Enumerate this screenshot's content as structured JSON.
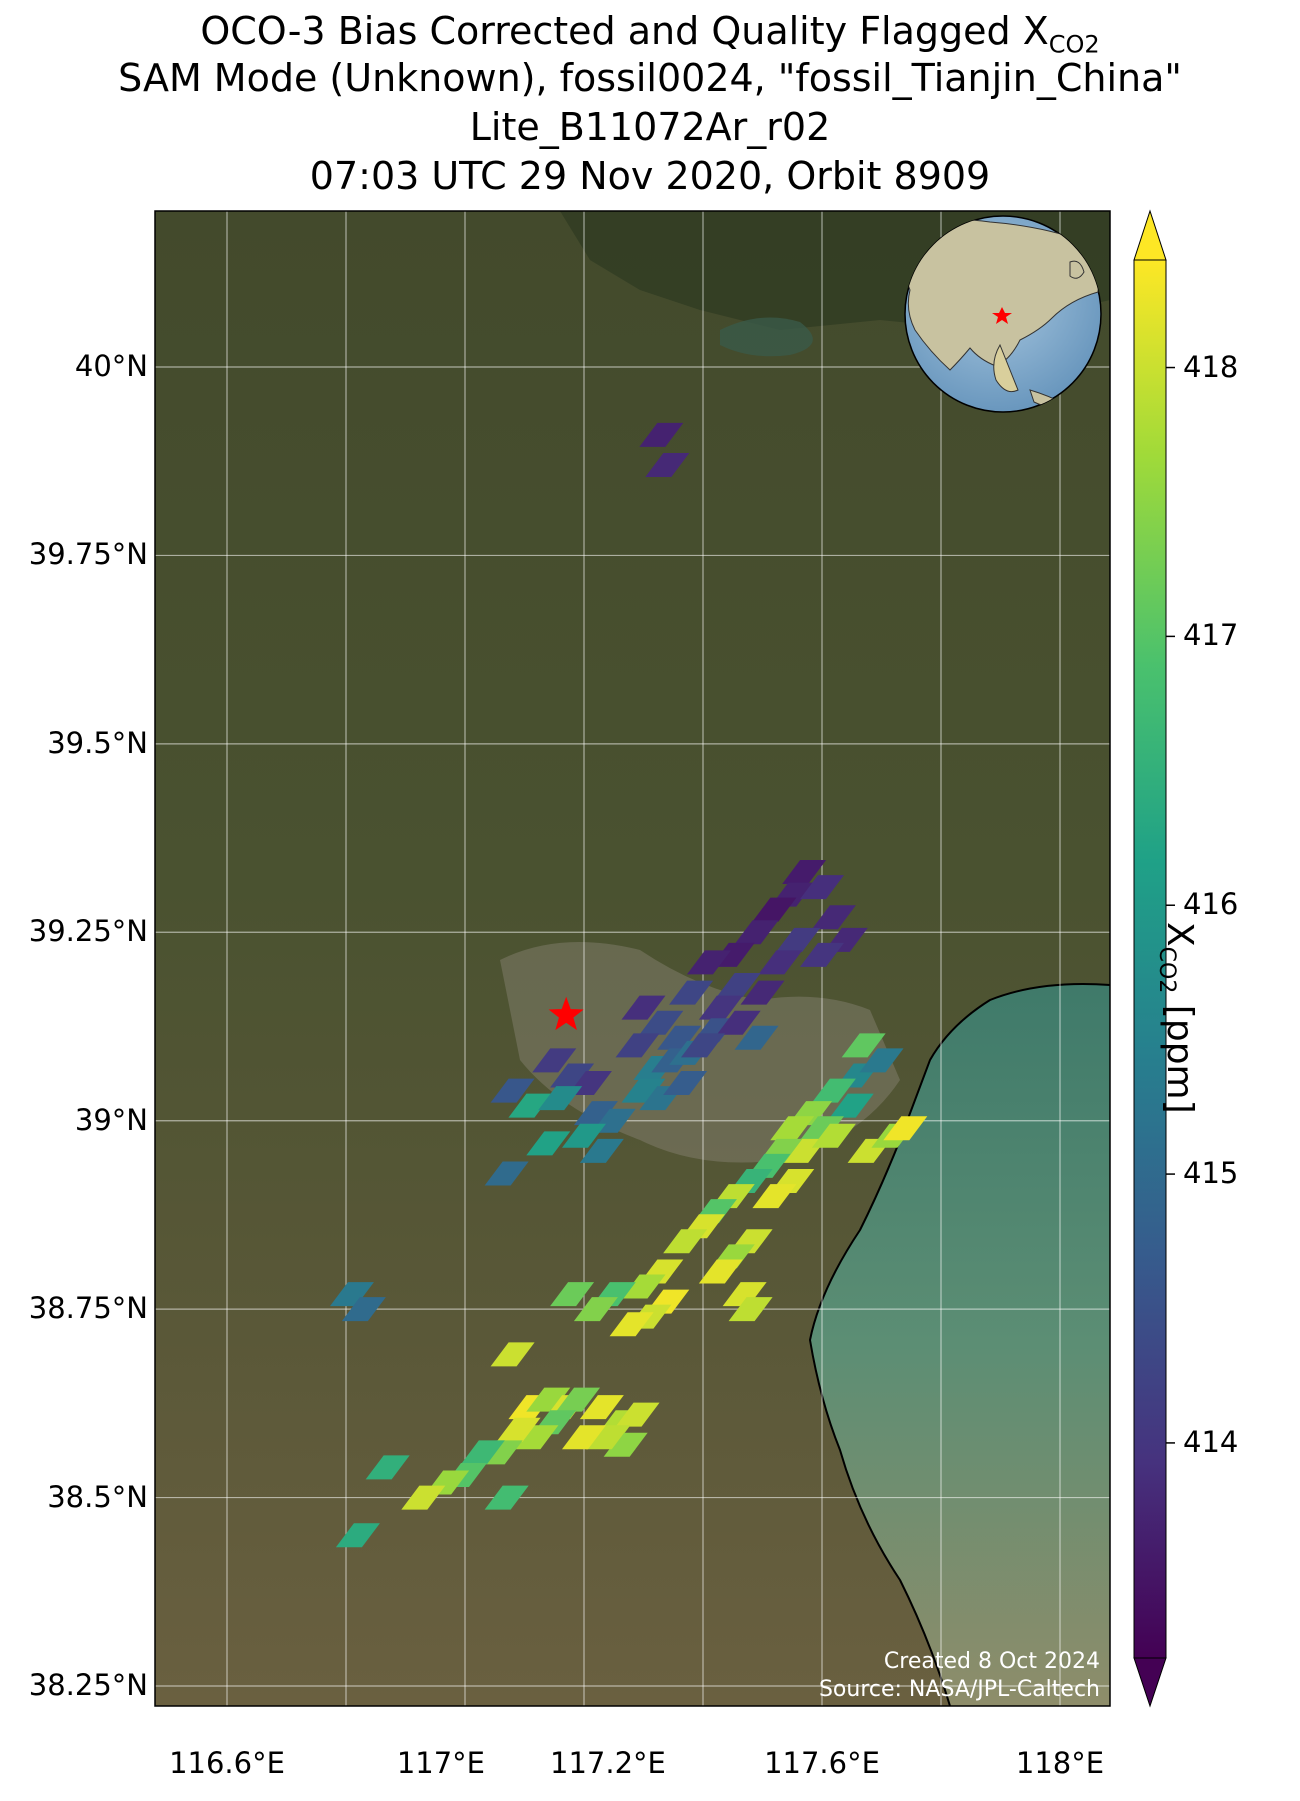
{
  "title": {
    "line1_prefix": "OCO-3 Bias Corrected and Quality Flagged X",
    "line1_sub": "CO2",
    "line2": "SAM Mode (Unknown), fossil0024, \"fossil_Tianjin_China\"",
    "line3": "Lite_B11072Ar_r02",
    "line4": "07:03 UTC 29 Nov 2020, Orbit 8909"
  },
  "map": {
    "lon_range": [
      116.5,
      118.1
    ],
    "lat_range": [
      38.2,
      40.2
    ],
    "lon_ticks": [
      {
        "value": 116.6,
        "label": "116.6°E"
      },
      {
        "value": 117.0,
        "label": "117°E"
      },
      {
        "value": 117.2,
        "label": "117.2°E"
      },
      {
        "value": 117.6,
        "label": "117.6°E"
      },
      {
        "value": 118.0,
        "label": "118°E"
      }
    ],
    "lat_ticks": [
      {
        "value": 40.0,
        "label": "40°N"
      },
      {
        "value": 39.75,
        "label": "39.75°N"
      },
      {
        "value": 39.5,
        "label": "39.5°N"
      },
      {
        "value": 39.25,
        "label": "39.25°N"
      },
      {
        "value": 39.0,
        "label": "39°N"
      },
      {
        "value": 38.75,
        "label": "38.75°N"
      },
      {
        "value": 38.5,
        "label": "38.5°N"
      },
      {
        "value": 38.25,
        "label": "38.25°N"
      }
    ],
    "gridlines_lon": [
      116.6,
      116.8,
      117.0,
      117.2,
      117.4,
      117.6,
      117.8,
      118.0
    ],
    "gridlines_lat": [
      40.0,
      39.75,
      39.5,
      39.25,
      39.0,
      38.75,
      38.5,
      38.25
    ],
    "target": {
      "lon": 117.17,
      "lat": 39.14
    },
    "colors": {
      "land": "#4a5230",
      "sea": "#5a8a72",
      "target": "#ff0000"
    }
  },
  "chart_data": {
    "type": "scatter",
    "variable": "XCO2",
    "units": "ppm",
    "colorbar": {
      "ticks": [
        414,
        415,
        416,
        417,
        418
      ],
      "range": [
        413.2,
        418.4
      ],
      "extend": "both",
      "label_prefix": "X",
      "label_sub": "CO2",
      "label_suffix": " [ppm]",
      "colormap": "viridis"
    },
    "soundings": [
      {
        "lon": 117.33,
        "lat": 39.91,
        "xco2": 413.7
      },
      {
        "lon": 117.34,
        "lat": 39.87,
        "xco2": 413.8
      },
      {
        "lon": 117.57,
        "lat": 39.33,
        "xco2": 413.6
      },
      {
        "lon": 117.55,
        "lat": 39.3,
        "xco2": 413.7
      },
      {
        "lon": 117.6,
        "lat": 39.31,
        "xco2": 413.9
      },
      {
        "lon": 117.52,
        "lat": 39.28,
        "xco2": 413.5
      },
      {
        "lon": 117.62,
        "lat": 39.27,
        "xco2": 413.8
      },
      {
        "lon": 117.49,
        "lat": 39.25,
        "xco2": 413.7
      },
      {
        "lon": 117.56,
        "lat": 39.24,
        "xco2": 414.1
      },
      {
        "lon": 117.64,
        "lat": 39.24,
        "xco2": 413.8
      },
      {
        "lon": 117.45,
        "lat": 39.22,
        "xco2": 413.6
      },
      {
        "lon": 117.53,
        "lat": 39.21,
        "xco2": 413.9
      },
      {
        "lon": 117.6,
        "lat": 39.22,
        "xco2": 414.0
      },
      {
        "lon": 117.41,
        "lat": 39.21,
        "xco2": 413.7
      },
      {
        "lon": 117.46,
        "lat": 39.18,
        "xco2": 414.2
      },
      {
        "lon": 117.5,
        "lat": 39.17,
        "xco2": 413.8
      },
      {
        "lon": 117.43,
        "lat": 39.15,
        "xco2": 414.0
      },
      {
        "lon": 117.38,
        "lat": 39.17,
        "xco2": 414.3
      },
      {
        "lon": 117.42,
        "lat": 39.12,
        "xco2": 414.5
      },
      {
        "lon": 117.46,
        "lat": 39.13,
        "xco2": 413.9
      },
      {
        "lon": 117.3,
        "lat": 39.15,
        "xco2": 413.9
      },
      {
        "lon": 117.33,
        "lat": 39.13,
        "xco2": 414.4
      },
      {
        "lon": 117.36,
        "lat": 39.11,
        "xco2": 414.6
      },
      {
        "lon": 117.29,
        "lat": 39.1,
        "xco2": 414.2
      },
      {
        "lon": 117.32,
        "lat": 39.07,
        "xco2": 415.4
      },
      {
        "lon": 117.35,
        "lat": 39.08,
        "xco2": 414.8
      },
      {
        "lon": 117.38,
        "lat": 39.09,
        "xco2": 415.1
      },
      {
        "lon": 117.3,
        "lat": 39.04,
        "xco2": 415.5
      },
      {
        "lon": 117.33,
        "lat": 39.03,
        "xco2": 415.2
      },
      {
        "lon": 117.37,
        "lat": 39.05,
        "xco2": 414.7
      },
      {
        "lon": 117.4,
        "lat": 39.1,
        "xco2": 414.3
      },
      {
        "lon": 117.49,
        "lat": 39.11,
        "xco2": 414.9
      },
      {
        "lon": 117.15,
        "lat": 39.08,
        "xco2": 414.1
      },
      {
        "lon": 117.18,
        "lat": 39.06,
        "xco2": 414.3
      },
      {
        "lon": 117.21,
        "lat": 39.05,
        "xco2": 414.0
      },
      {
        "lon": 117.08,
        "lat": 39.04,
        "xco2": 414.6
      },
      {
        "lon": 117.11,
        "lat": 39.02,
        "xco2": 416.3
      },
      {
        "lon": 117.16,
        "lat": 39.03,
        "xco2": 415.7
      },
      {
        "lon": 117.22,
        "lat": 39.01,
        "xco2": 414.8
      },
      {
        "lon": 117.25,
        "lat": 39.0,
        "xco2": 415.1
      },
      {
        "lon": 117.2,
        "lat": 38.98,
        "xco2": 416.0
      },
      {
        "lon": 117.23,
        "lat": 38.96,
        "xco2": 415.3
      },
      {
        "lon": 117.14,
        "lat": 38.97,
        "xco2": 416.2
      },
      {
        "lon": 117.07,
        "lat": 38.93,
        "xco2": 415.0
      },
      {
        "lon": 117.67,
        "lat": 39.1,
        "xco2": 417.1
      },
      {
        "lon": 117.66,
        "lat": 39.06,
        "xco2": 415.6
      },
      {
        "lon": 117.7,
        "lat": 39.08,
        "xco2": 415.3
      },
      {
        "lon": 117.62,
        "lat": 39.04,
        "xco2": 416.8
      },
      {
        "lon": 117.65,
        "lat": 39.02,
        "xco2": 416.2
      },
      {
        "lon": 117.58,
        "lat": 39.01,
        "xco2": 417.5
      },
      {
        "lon": 117.6,
        "lat": 38.99,
        "xco2": 417.2
      },
      {
        "lon": 117.55,
        "lat": 38.99,
        "xco2": 417.7
      },
      {
        "lon": 117.57,
        "lat": 38.96,
        "xco2": 418.0
      },
      {
        "lon": 117.53,
        "lat": 38.96,
        "xco2": 417.4
      },
      {
        "lon": 117.51,
        "lat": 38.94,
        "xco2": 416.9
      },
      {
        "lon": 117.55,
        "lat": 38.92,
        "xco2": 418.1
      },
      {
        "lon": 117.52,
        "lat": 38.9,
        "xco2": 418.2
      },
      {
        "lon": 117.48,
        "lat": 38.92,
        "xco2": 416.6
      },
      {
        "lon": 117.45,
        "lat": 38.9,
        "xco2": 417.9
      },
      {
        "lon": 117.42,
        "lat": 38.88,
        "xco2": 417.0
      },
      {
        "lon": 117.62,
        "lat": 38.98,
        "xco2": 417.8
      },
      {
        "lon": 117.68,
        "lat": 38.96,
        "xco2": 418.0
      },
      {
        "lon": 117.72,
        "lat": 38.98,
        "xco2": 417.6
      },
      {
        "lon": 117.74,
        "lat": 38.99,
        "xco2": 418.3
      },
      {
        "lon": 117.4,
        "lat": 38.86,
        "xco2": 418.1
      },
      {
        "lon": 117.37,
        "lat": 38.84,
        "xco2": 417.9
      },
      {
        "lon": 117.48,
        "lat": 38.84,
        "xco2": 418.0
      },
      {
        "lon": 117.45,
        "lat": 38.82,
        "xco2": 417.6
      },
      {
        "lon": 117.43,
        "lat": 38.8,
        "xco2": 418.2
      },
      {
        "lon": 117.33,
        "lat": 38.8,
        "xco2": 418.1
      },
      {
        "lon": 117.3,
        "lat": 38.78,
        "xco2": 417.7
      },
      {
        "lon": 117.34,
        "lat": 38.76,
        "xco2": 418.3
      },
      {
        "lon": 117.31,
        "lat": 38.74,
        "xco2": 418.0
      },
      {
        "lon": 117.28,
        "lat": 38.73,
        "xco2": 418.2
      },
      {
        "lon": 117.25,
        "lat": 38.77,
        "xco2": 416.9
      },
      {
        "lon": 117.22,
        "lat": 38.75,
        "xco2": 417.4
      },
      {
        "lon": 117.18,
        "lat": 38.77,
        "xco2": 417.2
      },
      {
        "lon": 117.47,
        "lat": 38.77,
        "xco2": 418.1
      },
      {
        "lon": 117.48,
        "lat": 38.75,
        "xco2": 417.9
      },
      {
        "lon": 117.08,
        "lat": 38.69,
        "xco2": 418.0
      },
      {
        "lon": 117.11,
        "lat": 38.62,
        "xco2": 418.3
      },
      {
        "lon": 117.14,
        "lat": 38.63,
        "xco2": 417.6
      },
      {
        "lon": 117.17,
        "lat": 38.62,
        "xco2": 418.1
      },
      {
        "lon": 117.19,
        "lat": 38.63,
        "xco2": 417.3
      },
      {
        "lon": 117.23,
        "lat": 38.62,
        "xco2": 418.2
      },
      {
        "lon": 117.26,
        "lat": 38.6,
        "xco2": 417.8
      },
      {
        "lon": 117.29,
        "lat": 38.61,
        "xco2": 418.0
      },
      {
        "lon": 117.27,
        "lat": 38.57,
        "xco2": 417.5
      },
      {
        "lon": 117.24,
        "lat": 38.58,
        "xco2": 417.9
      },
      {
        "lon": 117.2,
        "lat": 38.58,
        "xco2": 418.2
      },
      {
        "lon": 117.15,
        "lat": 38.6,
        "xco2": 417.1
      },
      {
        "lon": 117.12,
        "lat": 38.58,
        "xco2": 417.7
      },
      {
        "lon": 117.09,
        "lat": 38.59,
        "xco2": 418.1
      },
      {
        "lon": 117.06,
        "lat": 38.56,
        "xco2": 417.4
      },
      {
        "lon": 117.03,
        "lat": 38.56,
        "xco2": 416.7
      },
      {
        "lon": 117.0,
        "lat": 38.53,
        "xco2": 417.0
      },
      {
        "lon": 116.97,
        "lat": 38.52,
        "xco2": 417.6
      },
      {
        "lon": 116.93,
        "lat": 38.5,
        "xco2": 418.0
      },
      {
        "lon": 116.87,
        "lat": 38.54,
        "xco2": 416.5
      },
      {
        "lon": 117.07,
        "lat": 38.5,
        "xco2": 416.8
      },
      {
        "lon": 116.82,
        "lat": 38.45,
        "xco2": 416.4
      },
      {
        "lon": 116.81,
        "lat": 38.77,
        "xco2": 415.3
      },
      {
        "lon": 116.83,
        "lat": 38.75,
        "xco2": 415.0
      }
    ]
  },
  "inset": {
    "description": "orthographic-globe",
    "ocean": "#7fa7c9",
    "land": "#c8c2a0"
  },
  "credit": {
    "line1": "Created 8 Oct 2024",
    "line2": "Source: NASA/JPL-Caltech"
  }
}
